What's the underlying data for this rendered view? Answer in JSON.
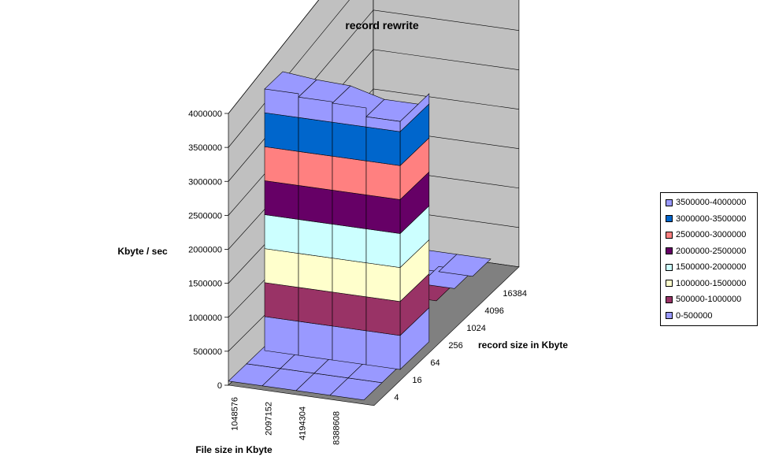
{
  "chart_data": {
    "type": "surface",
    "title": "record rewrite",
    "zlabel": "Kbyte / sec",
    "xlabel": "File size in Kbyte",
    "ylabel": "record size in Kbyte",
    "zlim": [
      0,
      4000000
    ],
    "z_ticks": [
      "0",
      "500000",
      "1000000",
      "1500000",
      "2000000",
      "2500000",
      "3000000",
      "3500000",
      "4000000"
    ],
    "file_sizes": [
      "1048576",
      "2097152",
      "4194304",
      "8388608"
    ],
    "record_sizes": [
      "4",
      "16",
      "64",
      "256",
      "1024",
      "4096",
      "16384"
    ],
    "front_surface": {
      "file_sizes": [
        "1048576",
        "2097152",
        "4194304",
        "8388608"
      ],
      "values": [
        0,
        3850000,
        3800000,
        3780000,
        3650000,
        3650000,
        0,
        0
      ]
    },
    "back_surface": {
      "record_size": "16384",
      "values": [
        850000,
        600000,
        500000,
        500000
      ]
    },
    "legend": [
      {
        "label": "3500000-4000000",
        "color": "#9999ff"
      },
      {
        "label": "3000000-3500000",
        "color": "#0066cc"
      },
      {
        "label": "2500000-3000000",
        "color": "#ff8080"
      },
      {
        "label": "2000000-2500000",
        "color": "#660066"
      },
      {
        "label": "1500000-2000000",
        "color": "#ccffff"
      },
      {
        "label": "1000000-1500000",
        "color": "#ffffcc"
      },
      {
        "label": "500000-1000000",
        "color": "#993366"
      },
      {
        "label": "0-500000",
        "color": "#9999ff"
      }
    ],
    "band_colors": [
      "#9999ff",
      "#993366",
      "#ffffcc",
      "#ccffff",
      "#660066",
      "#ff8080",
      "#0066cc",
      "#9999ff"
    ],
    "wall_color": "#c0c0c0",
    "floor_color": "#808080",
    "grid": true,
    "legend_position": "right"
  }
}
